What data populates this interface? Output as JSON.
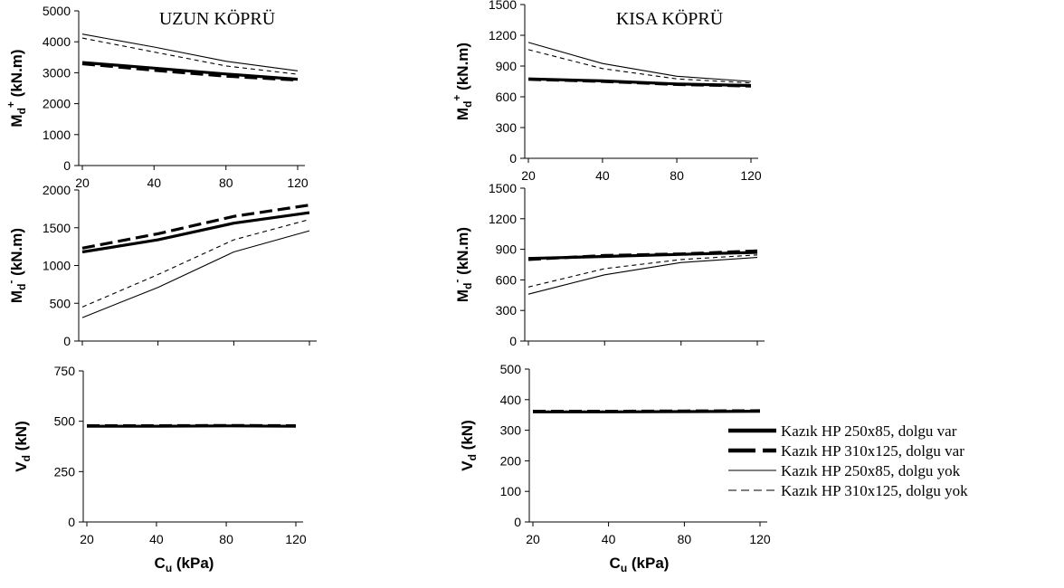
{
  "chart_data": [
    {
      "type": "line",
      "title": "UZUN KÖPRÜ",
      "ylabel": {
        "main": "M",
        "sub": "d",
        "sup": "+",
        "unit": " (kN.m)"
      },
      "x": [
        20,
        40,
        80,
        120
      ],
      "xticks": [
        "20",
        "40",
        "80",
        "120"
      ],
      "ylim": [
        0,
        5000
      ],
      "yticks": [
        "0",
        "1000",
        "2000",
        "3000",
        "4000",
        "5000"
      ],
      "series": [
        {
          "values": [
            3330,
            3150,
            2960,
            2790
          ]
        },
        {
          "values": [
            3290,
            3080,
            2890,
            2760
          ]
        },
        {
          "values": [
            4250,
            3830,
            3370,
            3060
          ]
        },
        {
          "values": [
            4120,
            3670,
            3220,
            2950
          ]
        }
      ]
    },
    {
      "type": "line",
      "title": "KISA KÖPRÜ",
      "ylabel": {
        "main": "M",
        "sub": "d",
        "sup": "+",
        "unit": " (kN.m)"
      },
      "x": [
        20,
        40,
        80,
        120
      ],
      "xticks": [
        "20",
        "40",
        "80",
        "120"
      ],
      "ylim": [
        0,
        1500
      ],
      "yticks": [
        "0",
        "300",
        "600",
        "900",
        "1200",
        "1500"
      ],
      "series": [
        {
          "values": [
            775,
            755,
            725,
            710
          ]
        },
        {
          "values": [
            770,
            750,
            720,
            705
          ]
        },
        {
          "values": [
            1130,
            925,
            800,
            750
          ]
        },
        {
          "values": [
            1060,
            875,
            775,
            735
          ]
        }
      ]
    },
    {
      "type": "line",
      "ylabel": {
        "main": "M",
        "sub": "d",
        "sup": "-",
        "unit": " (kN.m)"
      },
      "x": [
        20,
        40,
        80,
        120
      ],
      "ylim": [
        0,
        2000
      ],
      "yticks": [
        "0",
        "500",
        "1000",
        "1500",
        "2000"
      ],
      "series": [
        {
          "values": [
            1180,
            1340,
            1560,
            1700
          ]
        },
        {
          "values": [
            1230,
            1420,
            1650,
            1800
          ]
        },
        {
          "values": [
            310,
            710,
            1180,
            1460
          ]
        },
        {
          "values": [
            450,
            880,
            1340,
            1610
          ]
        }
      ]
    },
    {
      "type": "line",
      "ylabel": {
        "main": "M",
        "sub": "d",
        "sup": "-",
        "unit": " (kN.m)"
      },
      "x": [
        20,
        40,
        80,
        120
      ],
      "ylim": [
        0,
        1500
      ],
      "yticks": [
        "0",
        "300",
        "600",
        "900",
        "1200",
        "1500"
      ],
      "series": [
        {
          "values": [
            810,
            830,
            850,
            870
          ]
        },
        {
          "values": [
            800,
            840,
            855,
            885
          ]
        },
        {
          "values": [
            460,
            650,
            770,
            820
          ]
        },
        {
          "values": [
            530,
            710,
            800,
            845
          ]
        }
      ]
    },
    {
      "type": "line",
      "ylabel": {
        "main": "V",
        "sub": "d",
        "sup": "",
        "unit": " (kN)"
      },
      "xlabel": {
        "main": "C",
        "sub": "u",
        "unit": " (kPa)"
      },
      "x": [
        20,
        40,
        80,
        120
      ],
      "xticks": [
        "20",
        "40",
        "80",
        "120"
      ],
      "ylim": [
        0,
        750
      ],
      "yticks": [
        "0",
        "250",
        "500",
        "750"
      ],
      "series": [
        {
          "values": [
            475,
            475,
            477,
            475
          ]
        },
        {
          "values": [
            478,
            478,
            479,
            478
          ]
        },
        {
          "values": [
            474,
            474,
            476,
            474
          ]
        },
        {
          "values": [
            477,
            477,
            478,
            477
          ]
        }
      ]
    },
    {
      "type": "line",
      "ylabel": {
        "main": "V",
        "sub": "d",
        "sup": "",
        "unit": " (kN)"
      },
      "xlabel": {
        "main": "C",
        "sub": "u",
        "unit": " (kPa)"
      },
      "x": [
        20,
        40,
        80,
        120
      ],
      "xticks": [
        "20",
        "40",
        "80",
        "120"
      ],
      "ylim": [
        0,
        500
      ],
      "yticks": [
        "0",
        "100",
        "200",
        "300",
        "400",
        "500"
      ],
      "series": [
        {
          "values": [
            360,
            360,
            361,
            362
          ]
        },
        {
          "values": [
            362,
            362,
            363,
            364
          ]
        },
        {
          "values": [
            359,
            359,
            360,
            361
          ]
        },
        {
          "values": [
            361,
            361,
            362,
            363
          ]
        }
      ]
    }
  ],
  "legend": {
    "placement": "bottom-right",
    "entries": [
      {
        "label": "Kazık HP 250x85,    dolgu var",
        "style": "thick-solid"
      },
      {
        "label": "Kazık HP 310x125,  dolgu var",
        "style": "thick-dashed"
      },
      {
        "label": "Kazık HP 250x85,    dolgu yok",
        "style": "thin-solid"
      },
      {
        "label": "Kazık HP 310x125,  dolgu yok",
        "style": "thin-dashed"
      }
    ]
  }
}
